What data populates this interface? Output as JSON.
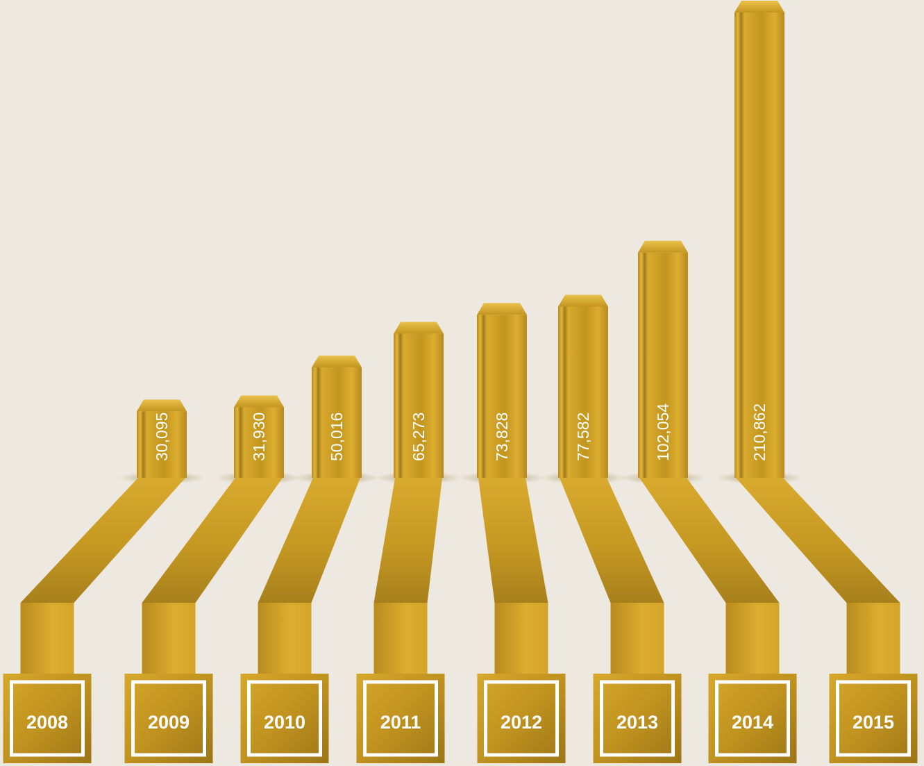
{
  "chart_data": {
    "type": "bar",
    "categories": [
      "2008",
      "2009",
      "2010",
      "2011",
      "2012",
      "2013",
      "2014",
      "2015"
    ],
    "values": [
      30095,
      31930,
      50016,
      65273,
      73828,
      77582,
      102054,
      210862
    ],
    "value_labels": [
      "30,095",
      "31,930",
      "50,016",
      "65,273",
      "73,828",
      "77,582",
      "102,054",
      "210,862"
    ],
    "title": "",
    "xlabel": "",
    "ylabel": "",
    "ylim": [
      0,
      210862
    ],
    "grid": false,
    "colors": {
      "background": "#ede8e0",
      "bar_light": "#dcae30",
      "bar_mid": "#c99b24",
      "bar_dark": "#a7801c",
      "frame_inner": "#ffffff"
    }
  }
}
